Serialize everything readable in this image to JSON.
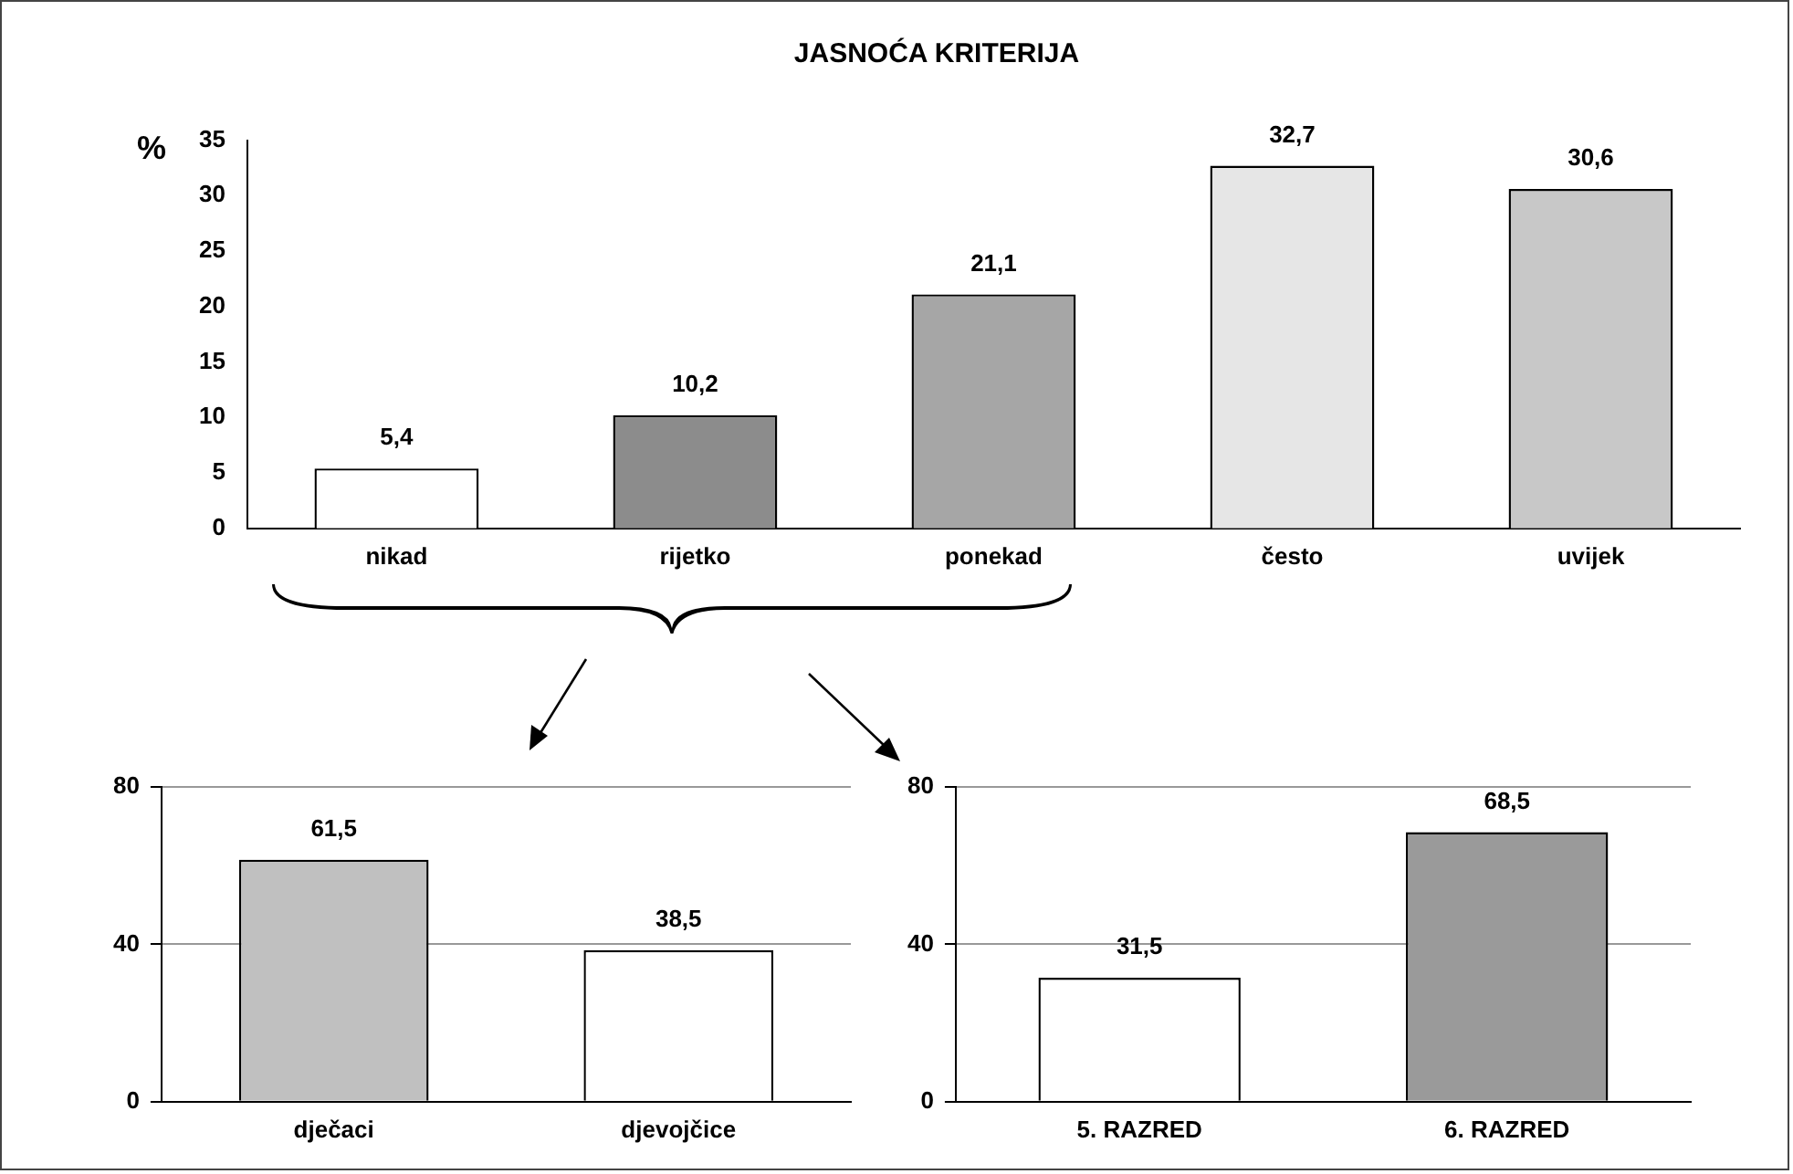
{
  "chart_data": [
    {
      "type": "bar",
      "title": "JASNOĆA KRITERIJA",
      "ylabel": "%",
      "categories": [
        "nikad",
        "rijetko",
        "ponekad",
        "često",
        "uvijek"
      ],
      "values": [
        5.4,
        10.2,
        21.1,
        32.7,
        30.6
      ],
      "value_labels": [
        "5,4",
        "10,2",
        "21,1",
        "32,7",
        "30,6"
      ],
      "colors": [
        "#ffffff",
        "#8c8c8c",
        "#a6a6a6",
        "#e6e6e6",
        "#c8c8c8"
      ],
      "ylim": [
        0,
        35
      ],
      "yticks": [
        0,
        5,
        10,
        15,
        20,
        25,
        30,
        35
      ]
    },
    {
      "type": "bar",
      "categories": [
        "dječaci",
        "djevojčice"
      ],
      "values": [
        61.5,
        38.5
      ],
      "value_labels": [
        "61,5",
        "38,5"
      ],
      "colors": [
        "#c0c0c0",
        "#ffffff"
      ],
      "ylim": [
        0,
        80
      ],
      "yticks": [
        0,
        40,
        80
      ],
      "grid": "y"
    },
    {
      "type": "bar",
      "categories": [
        "5. RAZRED",
        "6. RAZRED"
      ],
      "values": [
        31.5,
        68.5
      ],
      "value_labels": [
        "31,5",
        "68,5"
      ],
      "colors": [
        "#ffffff",
        "#9a9a9a"
      ],
      "ylim": [
        0,
        80
      ],
      "yticks": [
        0,
        40,
        80
      ],
      "grid": "y"
    }
  ]
}
